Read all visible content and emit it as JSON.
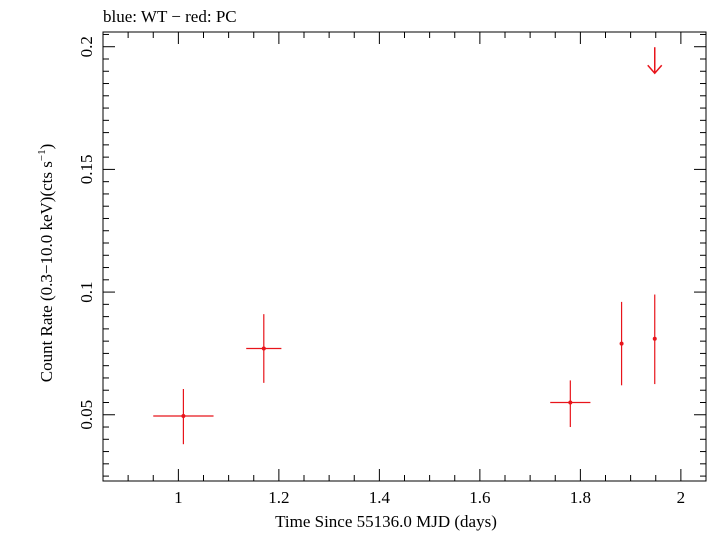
{
  "chart_data": {
    "type": "scatter",
    "title": "blue: WT − red: PC",
    "xlabel": "Time Since 55136.0 MJD (days)",
    "ylabel_main": "Count Rate (0.3−10.0 keV)(cts s",
    "ylabel_sup": "−1",
    "ylabel_close": ")",
    "xlim": [
      0.85,
      2.05
    ],
    "ylim": [
      0.023,
      0.206
    ],
    "xticks": [
      {
        "value": 1.0,
        "label": "1"
      },
      {
        "value": 1.2,
        "label": "1.2"
      },
      {
        "value": 1.4,
        "label": "1.4"
      },
      {
        "value": 1.6,
        "label": "1.6"
      },
      {
        "value": 1.8,
        "label": "1.8"
      },
      {
        "value": 2.0,
        "label": "2"
      }
    ],
    "yticks": [
      {
        "value": 0.05,
        "label": "0.05"
      },
      {
        "value": 0.1,
        "label": "0.1"
      },
      {
        "value": 0.15,
        "label": "0.15"
      },
      {
        "value": 0.2,
        "label": "0.2"
      }
    ],
    "series": [
      {
        "color": "#e8141b",
        "points": [
          {
            "x": 1.01,
            "y": 0.0495,
            "xerr": 0.06,
            "ylo": 0.038,
            "yhi": 0.0605
          },
          {
            "x": 1.17,
            "y": 0.077,
            "xerr": 0.035,
            "ylo": 0.063,
            "yhi": 0.091
          },
          {
            "x": 1.78,
            "y": 0.055,
            "xerr": 0.04,
            "ylo": 0.045,
            "yhi": 0.064
          },
          {
            "x": 1.882,
            "y": 0.079,
            "xerr": 0.0,
            "ylo": 0.062,
            "yhi": 0.096
          },
          {
            "x": 1.948,
            "y": 0.081,
            "xerr": 0.0,
            "ylo": 0.0625,
            "yhi": 0.099
          }
        ],
        "upper_limits": [
          {
            "x": 1.948,
            "y": 0.1945
          }
        ]
      }
    ],
    "grid": false,
    "legend": "none"
  }
}
